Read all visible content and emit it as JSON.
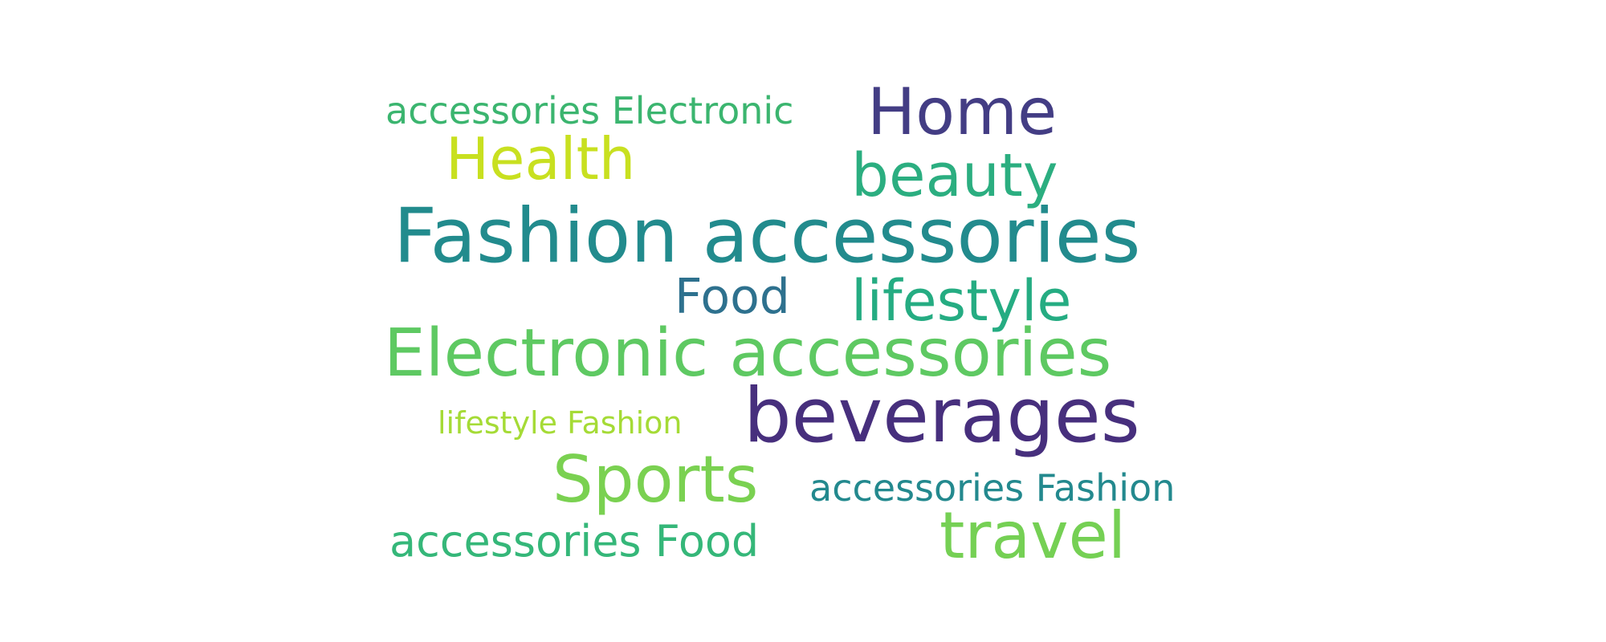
{
  "words": [
    {
      "text": "accessories Electronic",
      "color": "#3bb56f"
    },
    {
      "text": "Home",
      "color": "#433d84"
    },
    {
      "text": "Health",
      "color": "#c8e020"
    },
    {
      "text": "beauty",
      "color": "#2bae80"
    },
    {
      "text": "Fashion accessories",
      "color": "#228b8d"
    },
    {
      "text": "Food",
      "color": "#2e718e"
    },
    {
      "text": "lifestyle",
      "color": "#25ac82"
    },
    {
      "text": "Electronic accessories",
      "color": "#5ec962"
    },
    {
      "text": "lifestyle Fashion",
      "color": "#a5db36"
    },
    {
      "text": "beverages",
      "color": "#472f7d"
    },
    {
      "text": "Sports",
      "color": "#7ad151"
    },
    {
      "text": "accessories Fashion",
      "color": "#23898e"
    },
    {
      "text": "accessories Food",
      "color": "#35b779"
    },
    {
      "text": "travel",
      "color": "#75d054"
    }
  ]
}
